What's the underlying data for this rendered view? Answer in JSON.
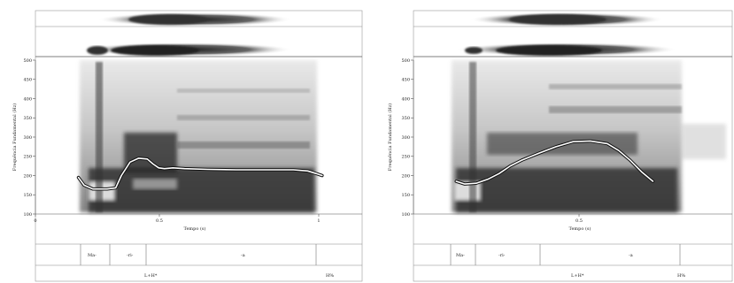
{
  "panels": [
    {
      "id": "left",
      "y_axis_label": "Frequência Fundamental (Hz)",
      "x_axis_label": "Tempo (s)",
      "y_ticks": [
        "500",
        "450",
        "400",
        "350",
        "300",
        "250",
        "200",
        "150",
        "100"
      ],
      "x_ticks": [
        "0",
        "0.5",
        "1"
      ],
      "syllables": [
        "Ma-",
        "-ri-",
        "-a"
      ],
      "tones": [
        "L+H*",
        "H%"
      ]
    },
    {
      "id": "right",
      "y_axis_label": "Frequência Fundamental (Hz)",
      "x_axis_label": "Tempo (s)",
      "y_ticks": [
        "500",
        "450",
        "400",
        "350",
        "300",
        "250",
        "200",
        "150",
        "100"
      ],
      "x_ticks": [
        "0.5"
      ],
      "syllables": [
        "Ma-",
        "-ri-",
        "-a"
      ],
      "tones": [
        "L+H*",
        "H%"
      ]
    }
  ],
  "chart_data": [
    {
      "type": "line",
      "title": "",
      "xlabel": "Tempo (s)",
      "ylabel": "Frequência Fundamental (Hz)",
      "ylim": [
        100,
        500
      ],
      "xlim": [
        0,
        1.05
      ],
      "series": [
        {
          "x": [
            0.15,
            0.17,
            0.2,
            0.25,
            0.28,
            0.3,
            0.33,
            0.36,
            0.39,
            0.41,
            0.43,
            0.45,
            0.48,
            0.52,
            0.6,
            0.7,
            0.8,
            0.9,
            0.95,
            0.98,
            1.0
          ],
          "y": [
            195,
            175,
            165,
            165,
            168,
            200,
            235,
            245,
            243,
            230,
            220,
            218,
            220,
            218,
            216,
            215,
            215,
            215,
            212,
            205,
            200
          ]
        }
      ]
    },
    {
      "type": "line",
      "title": "",
      "xlabel": "Tempo (s)",
      "ylabel": "Frequência Fundamental (Hz)",
      "ylim": [
        100,
        500
      ],
      "xlim": [
        0,
        1.05
      ],
      "series": [
        {
          "x": [
            0.15,
            0.18,
            0.22,
            0.26,
            0.3,
            0.34,
            0.38,
            0.44,
            0.5,
            0.56,
            0.62,
            0.68,
            0.72,
            0.76,
            0.8,
            0.84
          ],
          "y": [
            185,
            178,
            180,
            190,
            205,
            225,
            240,
            258,
            275,
            288,
            290,
            283,
            265,
            240,
            210,
            185
          ]
        }
      ]
    }
  ],
  "colors": {
    "contour": "#ffffff",
    "contour_outline": "#111111",
    "spectrogram_dark": "#2a2a2a",
    "frame": "#555555"
  }
}
